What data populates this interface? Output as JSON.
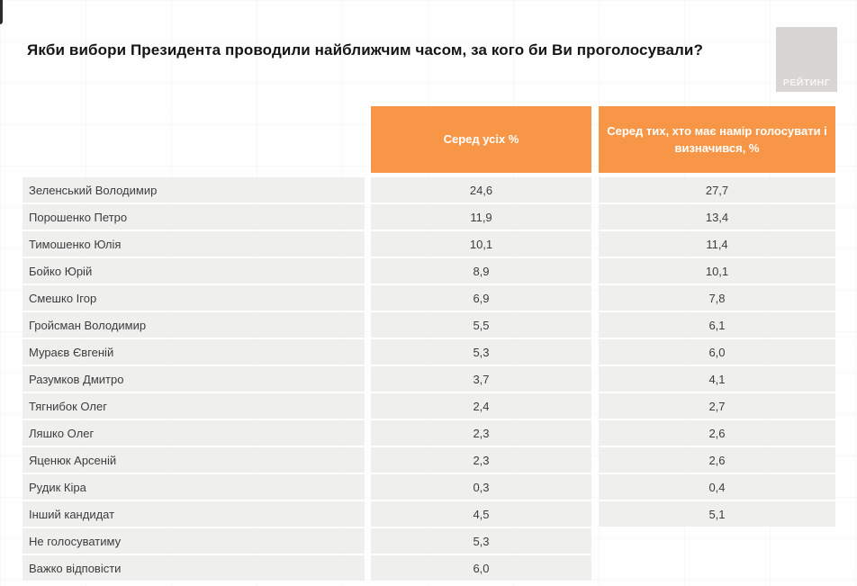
{
  "title": "Якби вибори Президента проводили найближчим часом, за кого би Ви проголосували?",
  "logo": {
    "text": "РЕЙТИНГ"
  },
  "colors": {
    "header_orange": "#F79646",
    "row_gray": "#EFEFEE",
    "header_text": "#FFFFFF",
    "logo_gray": "#D7D6D3"
  },
  "table": {
    "columns": [
      "Серед усіх %",
      "Серед тих, хто має намір голосувати і визначився, %"
    ],
    "rows": [
      {
        "name": "Зеленський Володимир",
        "all": "24,6",
        "decided": "27,7"
      },
      {
        "name": "Порошенко Петро",
        "all": "11,9",
        "decided": "13,4"
      },
      {
        "name": "Тимошенко Юлія",
        "all": "10,1",
        "decided": "11,4"
      },
      {
        "name": "Бойко Юрій",
        "all": "8,9",
        "decided": "10,1"
      },
      {
        "name": "Смешко Ігор",
        "all": "6,9",
        "decided": "7,8"
      },
      {
        "name": "Гройсман Володимир",
        "all": "5,5",
        "decided": "6,1"
      },
      {
        "name": "Мураєв Євгеній",
        "all": "5,3",
        "decided": "6,0"
      },
      {
        "name": "Разумков Дмитро",
        "all": "3,7",
        "decided": "4,1"
      },
      {
        "name": "Тягнибок Олег",
        "all": "2,4",
        "decided": "2,7"
      },
      {
        "name": "Ляшко Олег",
        "all": "2,3",
        "decided": "2,6"
      },
      {
        "name": "Яценюк Арсеній",
        "all": "2,3",
        "decided": "2,6"
      },
      {
        "name": "Рудик Кіра",
        "all": "0,3",
        "decided": "0,4"
      },
      {
        "name": "Інший кандидат",
        "all": "4,5",
        "decided": "5,1"
      },
      {
        "name": "Не голосуватиму",
        "all": "5,3",
        "decided": null
      },
      {
        "name": "Важко відповісти",
        "all": "6,0",
        "decided": null
      }
    ]
  },
  "chart_data": {
    "type": "table",
    "title": "Якби вибори Президента проводили найближчим часом, за кого би Ви проголосували?",
    "categories": [
      "Зеленський Володимир",
      "Порошенко Петро",
      "Тимошенко Юлія",
      "Бойко Юрій",
      "Смешко Ігор",
      "Гройсман Володимир",
      "Мураєв Євгеній",
      "Разумков Дмитро",
      "Тягнибок Олег",
      "Ляшко Олег",
      "Яценюк Арсеній",
      "Рудик Кіра",
      "Інший кандидат",
      "Не голосуватиму",
      "Важко відповісти"
    ],
    "series": [
      {
        "name": "Серед усіх %",
        "values": [
          24.6,
          11.9,
          10.1,
          8.9,
          6.9,
          5.5,
          5.3,
          3.7,
          2.4,
          2.3,
          2.3,
          0.3,
          4.5,
          5.3,
          6.0
        ]
      },
      {
        "name": "Серед тих, хто має намір голосувати і визначився, %",
        "values": [
          27.7,
          13.4,
          11.4,
          10.1,
          7.8,
          6.1,
          6.0,
          4.1,
          2.7,
          2.6,
          2.6,
          0.4,
          5.1,
          null,
          null
        ]
      }
    ],
    "value_format": "percent, comma decimal separator",
    "legend_position": "column headers",
    "grid": false
  }
}
